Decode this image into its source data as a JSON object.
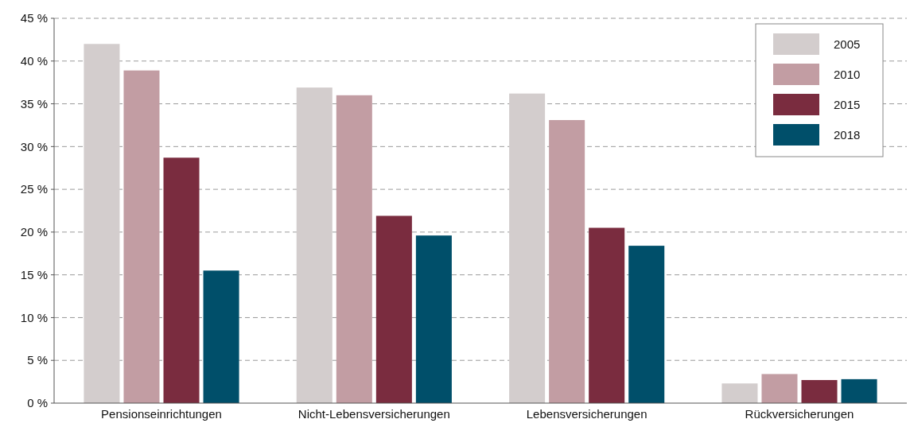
{
  "chart_data": {
    "type": "bar",
    "categories": [
      "Pensionseinrichtungen",
      "Nicht-Lebensversicherungen",
      "Lebensversicherungen",
      "Rückversicherungen"
    ],
    "series": [
      {
        "name": "2005",
        "color": "#d3cdcd",
        "values": [
          42,
          36.9,
          36.2,
          2.3
        ]
      },
      {
        "name": "2010",
        "color": "#c29da3",
        "values": [
          38.9,
          36,
          33.1,
          3.4
        ]
      },
      {
        "name": "2015",
        "color": "#7a2c3f",
        "values": [
          28.7,
          21.9,
          20.5,
          2.7
        ]
      },
      {
        "name": "2018",
        "color": "#004f6a",
        "values": [
          15.5,
          19.6,
          18.4,
          2.8
        ]
      }
    ],
    "ylim": [
      0,
      45
    ],
    "yticks": [
      {
        "value": 0,
        "label": "0 %"
      },
      {
        "value": 5,
        "label": "5 %"
      },
      {
        "value": 10,
        "label": "10 %"
      },
      {
        "value": 15,
        "label": "15 %"
      },
      {
        "value": 20,
        "label": "20 %"
      },
      {
        "value": 25,
        "label": "25 %"
      },
      {
        "value": 30,
        "label": "30 %"
      },
      {
        "value": 35,
        "label": "35 %"
      },
      {
        "value": 40,
        "label": "40 %"
      },
      {
        "value": 45,
        "label": "45 %"
      }
    ],
    "grid": "y",
    "legend": "top right"
  }
}
